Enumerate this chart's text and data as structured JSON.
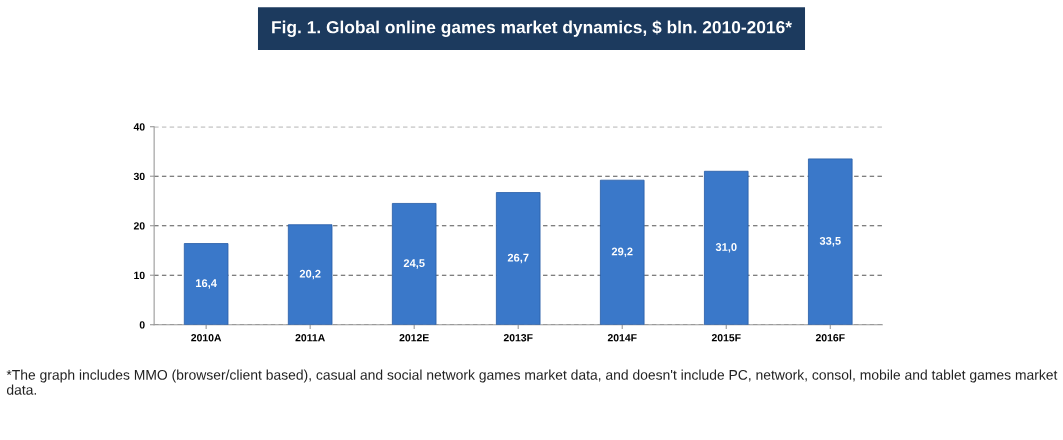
{
  "chart_data": {
    "type": "bar",
    "title": "Fig. 1. Global online games market dynamics, $ bln. 2010-2016*",
    "categories": [
      "2010A",
      "2011A",
      "2012E",
      "2013F",
      "2014F",
      "2015F",
      "2016F"
    ],
    "values": [
      16.4,
      20.2,
      24.5,
      26.7,
      29.2,
      31.0,
      33.5
    ],
    "value_labels": [
      "16,4",
      "20,2",
      "24,5",
      "26,7",
      "29,2",
      "31,0",
      "33,5"
    ],
    "color": "#3a78c9",
    "ylim": [
      0,
      40
    ],
    "yticks": [
      0,
      10,
      20,
      30,
      40
    ],
    "grid": "y",
    "annotations": [
      "*The graph includes MMO (browser/client based), casual and social network games market data, and doesn't include PC, network, consol, mobile and tablet games market data."
    ]
  }
}
